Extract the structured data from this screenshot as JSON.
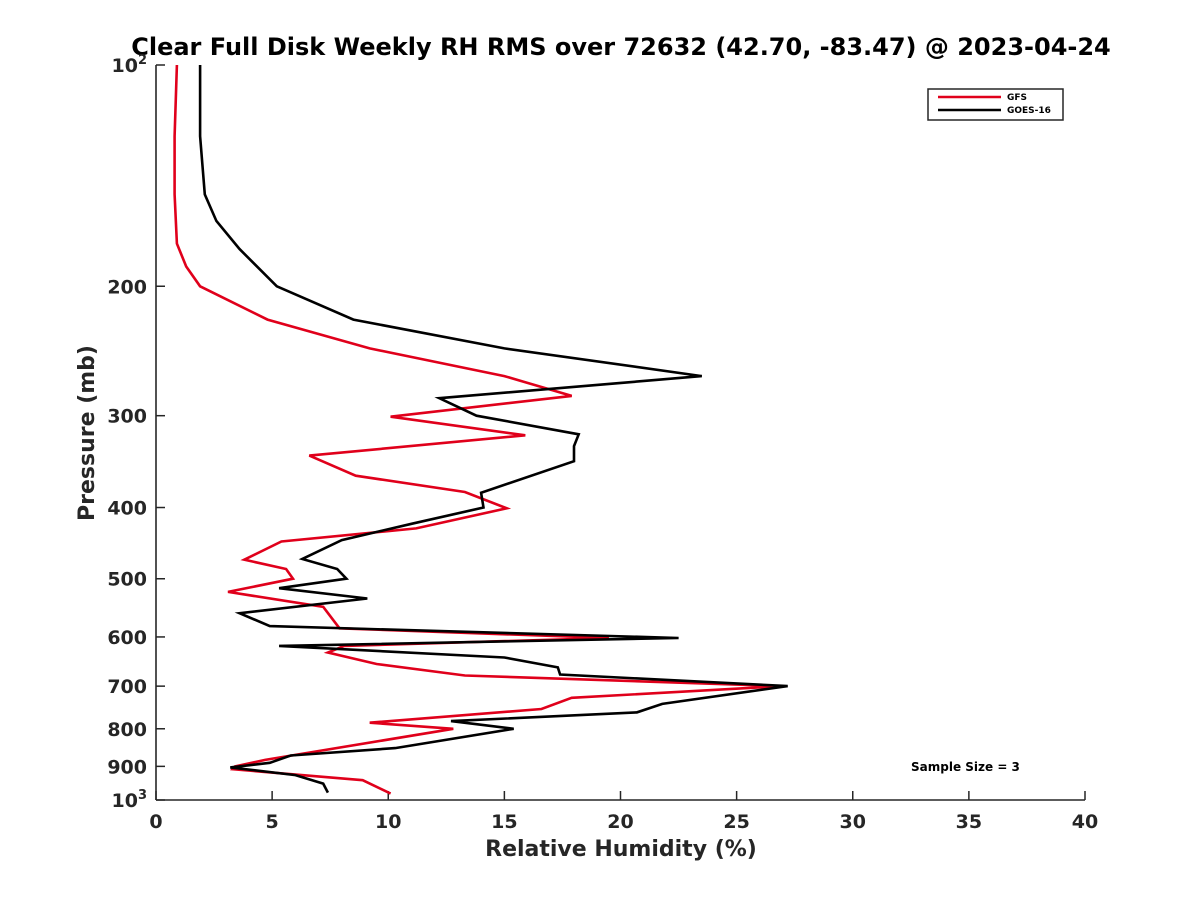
{
  "chart_data": {
    "type": "line",
    "title": "Clear Full Disk Weekly RH RMS over 72632 (42.70, -83.47) @ 2023-04-24",
    "xlabel": "Relative Humidity (%)",
    "ylabel": "Pressure (mb)",
    "xlim": [
      0,
      40
    ],
    "ylim": [
      100,
      1000
    ],
    "y_scale": "log",
    "y_reversed": true,
    "grid": false,
    "legend_position": "top-right",
    "x_ticks": [
      "0",
      "5",
      "10",
      "15",
      "20",
      "25",
      "30",
      "35",
      "40"
    ],
    "x_tick_values": [
      0,
      5,
      10,
      15,
      20,
      25,
      30,
      35,
      40
    ],
    "y_ticks": [
      {
        "value": 100,
        "base": "10",
        "exp": "2"
      },
      {
        "value": 200,
        "text": "200"
      },
      {
        "value": 300,
        "text": "300"
      },
      {
        "value": 400,
        "text": "400"
      },
      {
        "value": 500,
        "text": "500"
      },
      {
        "value": 600,
        "text": "600"
      },
      {
        "value": 700,
        "text": "700"
      },
      {
        "value": 800,
        "text": "800"
      },
      {
        "value": 900,
        "text": "900"
      },
      {
        "value": 1000,
        "base": "10",
        "exp": "3"
      }
    ],
    "annotation": "Sample Size = 3",
    "series": [
      {
        "name": "GFS",
        "color": "#e0001b",
        "x": [
          0.9,
          0.8,
          0.8,
          0.9,
          1.3,
          1.9,
          4.8,
          9.2,
          15.0,
          17.9,
          10.1,
          15.9,
          6.6,
          8.6,
          13.3,
          15.1,
          11.2,
          5.4,
          3.8,
          5.6,
          5.9,
          3.1,
          7.2,
          7.9,
          19.5,
          8.1,
          7.4,
          9.5,
          13.3,
          27.0,
          17.9,
          16.6,
          9.2,
          12.8,
          4.7,
          3.4,
          3.3,
          8.9,
          10.1
        ],
        "y": [
          100,
          125,
          150,
          175,
          188,
          200,
          222,
          243,
          265,
          282,
          301,
          319,
          340,
          362,
          381,
          401,
          427,
          445,
          471,
          485,
          500,
          521,
          546,
          584,
          602,
          617,
          630,
          653,
          677,
          700,
          726,
          752,
          785,
          800,
          882,
          900,
          908,
          940,
          980
        ]
      },
      {
        "name": "GOES-16",
        "color": "#000000",
        "x": [
          1.9,
          1.9,
          2.1,
          2.6,
          3.6,
          5.2,
          8.5,
          15.0,
          23.5,
          12.2,
          13.8,
          18.2,
          18.0,
          18.0,
          14.0,
          14.1,
          11.0,
          8.0,
          6.3,
          7.8,
          8.2,
          5.3,
          9.1,
          3.6,
          4.9,
          22.5,
          5.3,
          15.0,
          17.3,
          17.4,
          27.2,
          21.8,
          20.7,
          12.7,
          15.4,
          10.3,
          5.8,
          4.9,
          3.2,
          6.0,
          7.2,
          7.4
        ],
        "y": [
          100,
          125,
          150,
          163,
          178,
          200,
          222,
          243,
          265,
          284,
          300,
          318,
          330,
          346,
          382,
          400,
          421,
          443,
          470,
          485,
          500,
          515,
          532,
          557,
          580,
          602,
          617,
          640,
          660,
          675,
          700,
          740,
          760,
          781,
          800,
          850,
          870,
          890,
          903,
          925,
          950,
          977
        ]
      }
    ]
  }
}
